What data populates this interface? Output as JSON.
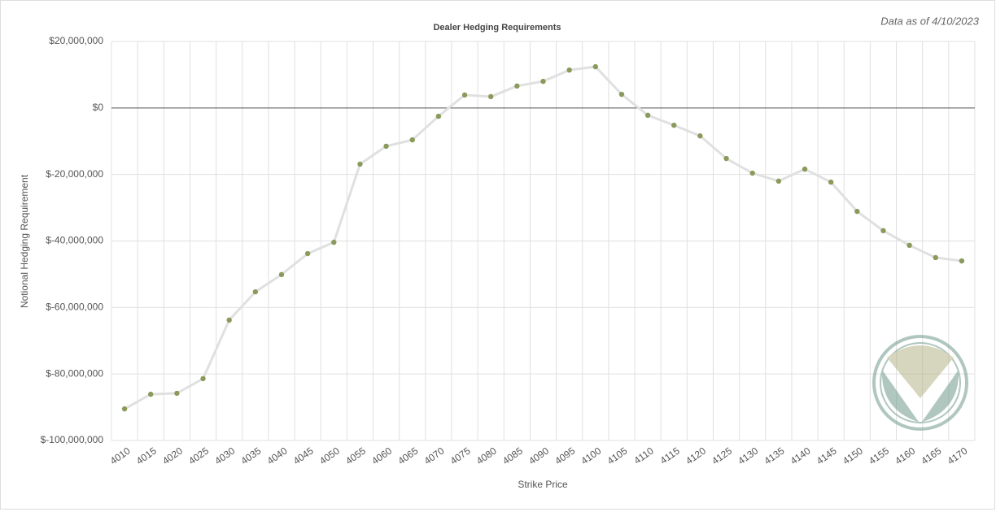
{
  "chart_data": {
    "type": "line",
    "title": "Dealer Hedging Requirements",
    "subtitle": "Data as of 4/10/2023",
    "x_label": "Strike Price",
    "y_label": "Notional Hedging Requirement",
    "categories": [
      "4010",
      "4015",
      "4020",
      "4025",
      "4030",
      "4035",
      "4040",
      "4045",
      "4050",
      "4055",
      "4060",
      "4065",
      "4070",
      "4075",
      "4080",
      "4085",
      "4090",
      "4095",
      "4100",
      "4105",
      "4110",
      "4115",
      "4120",
      "4125",
      "4130",
      "4135",
      "4140",
      "4145",
      "4150",
      "4155",
      "4160",
      "4165",
      "4170"
    ],
    "series": [
      {
        "name": "Notional Hedging Requirement",
        "color": "#8a9a5b",
        "line_color": "#e0e0e0",
        "values": [
          -90500000,
          -86100000,
          -85800000,
          -81400000,
          -63800000,
          -55300000,
          -50100000,
          -43800000,
          -40400000,
          -16900000,
          -11500000,
          -9600000,
          -2500000,
          3900000,
          3400000,
          6600000,
          8000000,
          11400000,
          12400000,
          4100000,
          -2200000,
          -5200000,
          -8400000,
          -15200000,
          -19600000,
          -22000000,
          -18400000,
          -22300000,
          -31100000,
          -36900000,
          -41300000,
          -45000000,
          -46000000
        ]
      }
    ],
    "ylim": [
      -100000000,
      20000000
    ],
    "yticks": [
      {
        "value": -100000000,
        "label": "$-100,000,000"
      },
      {
        "value": -80000000,
        "label": "$-80,000,000"
      },
      {
        "value": -60000000,
        "label": "$-60,000,000"
      },
      {
        "value": -40000000,
        "label": "$-40,000,000"
      },
      {
        "value": -20000000,
        "label": "$-20,000,000"
      },
      {
        "value": 0,
        "label": "$0"
      },
      {
        "value": 20000000,
        "label": "$20,000,000"
      }
    ],
    "grid": true
  }
}
